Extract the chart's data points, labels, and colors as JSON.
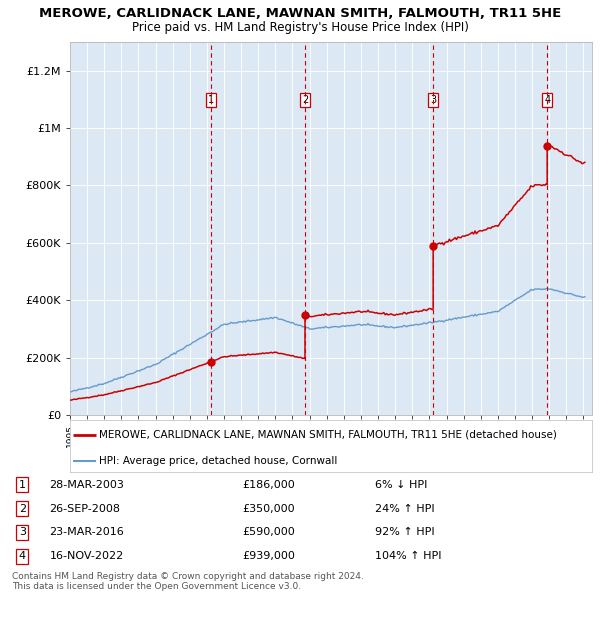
{
  "title": "MEROWE, CARLIDNACK LANE, MAWNAN SMITH, FALMOUTH, TR11 5HE",
  "subtitle": "Price paid vs. HM Land Registry's House Price Index (HPI)",
  "background_color": "#dce9f5",
  "plot_bg_color": "#dce9f5",
  "red_line_color": "#cc0000",
  "blue_line_color": "#6699cc",
  "ylim": [
    0,
    1300000
  ],
  "yticks": [
    0,
    200000,
    400000,
    600000,
    800000,
    1000000,
    1200000
  ],
  "ytick_labels": [
    "£0",
    "£200K",
    "£400K",
    "£600K",
    "£800K",
    "£1M",
    "£1.2M"
  ],
  "x_start_year": 1995,
  "x_end_year": 2025,
  "sale_dates_decimal": [
    2003.23,
    2008.73,
    2016.22,
    2022.88
  ],
  "sale_prices": [
    186000,
    350000,
    590000,
    939000
  ],
  "sale_labels": [
    "1",
    "2",
    "3",
    "4"
  ],
  "vline_color": "#cc0000",
  "marker_color": "#cc0000",
  "legend_label_red": "MEROWE, CARLIDNACK LANE, MAWNAN SMITH, FALMOUTH, TR11 5HE (detached house)",
  "legend_label_blue": "HPI: Average price, detached house, Cornwall",
  "table_rows": [
    {
      "num": "1",
      "date": "28-MAR-2003",
      "price": "£186,000",
      "change": "6% ↓ HPI"
    },
    {
      "num": "2",
      "date": "26-SEP-2008",
      "price": "£350,000",
      "change": "24% ↑ HPI"
    },
    {
      "num": "3",
      "date": "23-MAR-2016",
      "price": "£590,000",
      "change": "92% ↑ HPI"
    },
    {
      "num": "4",
      "date": "16-NOV-2022",
      "price": "£939,000",
      "change": "104% ↑ HPI"
    }
  ],
  "footer": "Contains HM Land Registry data © Crown copyright and database right 2024.\nThis data is licensed under the Open Government Licence v3.0."
}
